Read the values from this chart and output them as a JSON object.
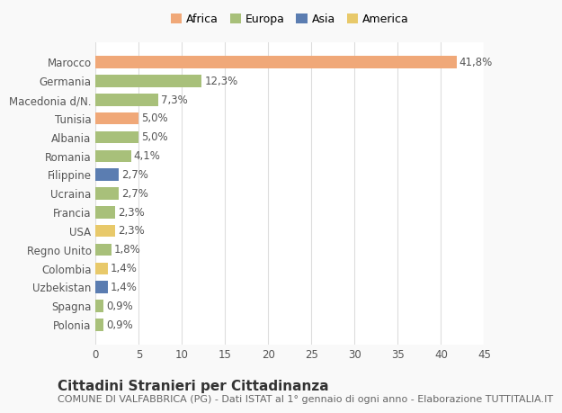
{
  "countries": [
    "Polonia",
    "Spagna",
    "Uzbekistan",
    "Colombia",
    "Regno Unito",
    "USA",
    "Francia",
    "Ucraina",
    "Filippine",
    "Romania",
    "Albania",
    "Tunisia",
    "Macedonia d/N.",
    "Germania",
    "Marocco"
  ],
  "values": [
    0.9,
    0.9,
    1.4,
    1.4,
    1.8,
    2.3,
    2.3,
    2.7,
    2.7,
    4.1,
    5.0,
    5.0,
    7.3,
    12.3,
    41.8
  ],
  "colors": [
    "#a8c07a",
    "#a8c07a",
    "#5b7db1",
    "#e8c96a",
    "#a8c07a",
    "#e8c96a",
    "#a8c07a",
    "#a8c07a",
    "#5b7db1",
    "#a8c07a",
    "#a8c07a",
    "#f0a878",
    "#a8c07a",
    "#a8c07a",
    "#f0a878"
  ],
  "labels": [
    "0,9%",
    "0,9%",
    "1,4%",
    "1,4%",
    "1,8%",
    "2,3%",
    "2,3%",
    "2,7%",
    "2,7%",
    "4,1%",
    "5,0%",
    "5,0%",
    "7,3%",
    "12,3%",
    "41,8%"
  ],
  "legend_labels": [
    "Africa",
    "Europa",
    "Asia",
    "America"
  ],
  "legend_colors": [
    "#f0a878",
    "#a8c07a",
    "#5b7db1",
    "#e8c96a"
  ],
  "title": "Cittadini Stranieri per Cittadinanza",
  "subtitle": "COMUNE DI VALFABBRICA (PG) - Dati ISTAT al 1° gennaio di ogni anno - Elaborazione TUTTITALIA.IT",
  "xlim": [
    0,
    45
  ],
  "xticks": [
    0,
    5,
    10,
    15,
    20,
    25,
    30,
    35,
    40,
    45
  ],
  "background_color": "#f9f9f9",
  "plot_background": "#ffffff",
  "grid_color": "#dddddd",
  "bar_height": 0.65,
  "title_fontsize": 11,
  "subtitle_fontsize": 8,
  "label_fontsize": 8.5,
  "tick_fontsize": 8.5,
  "legend_fontsize": 9
}
